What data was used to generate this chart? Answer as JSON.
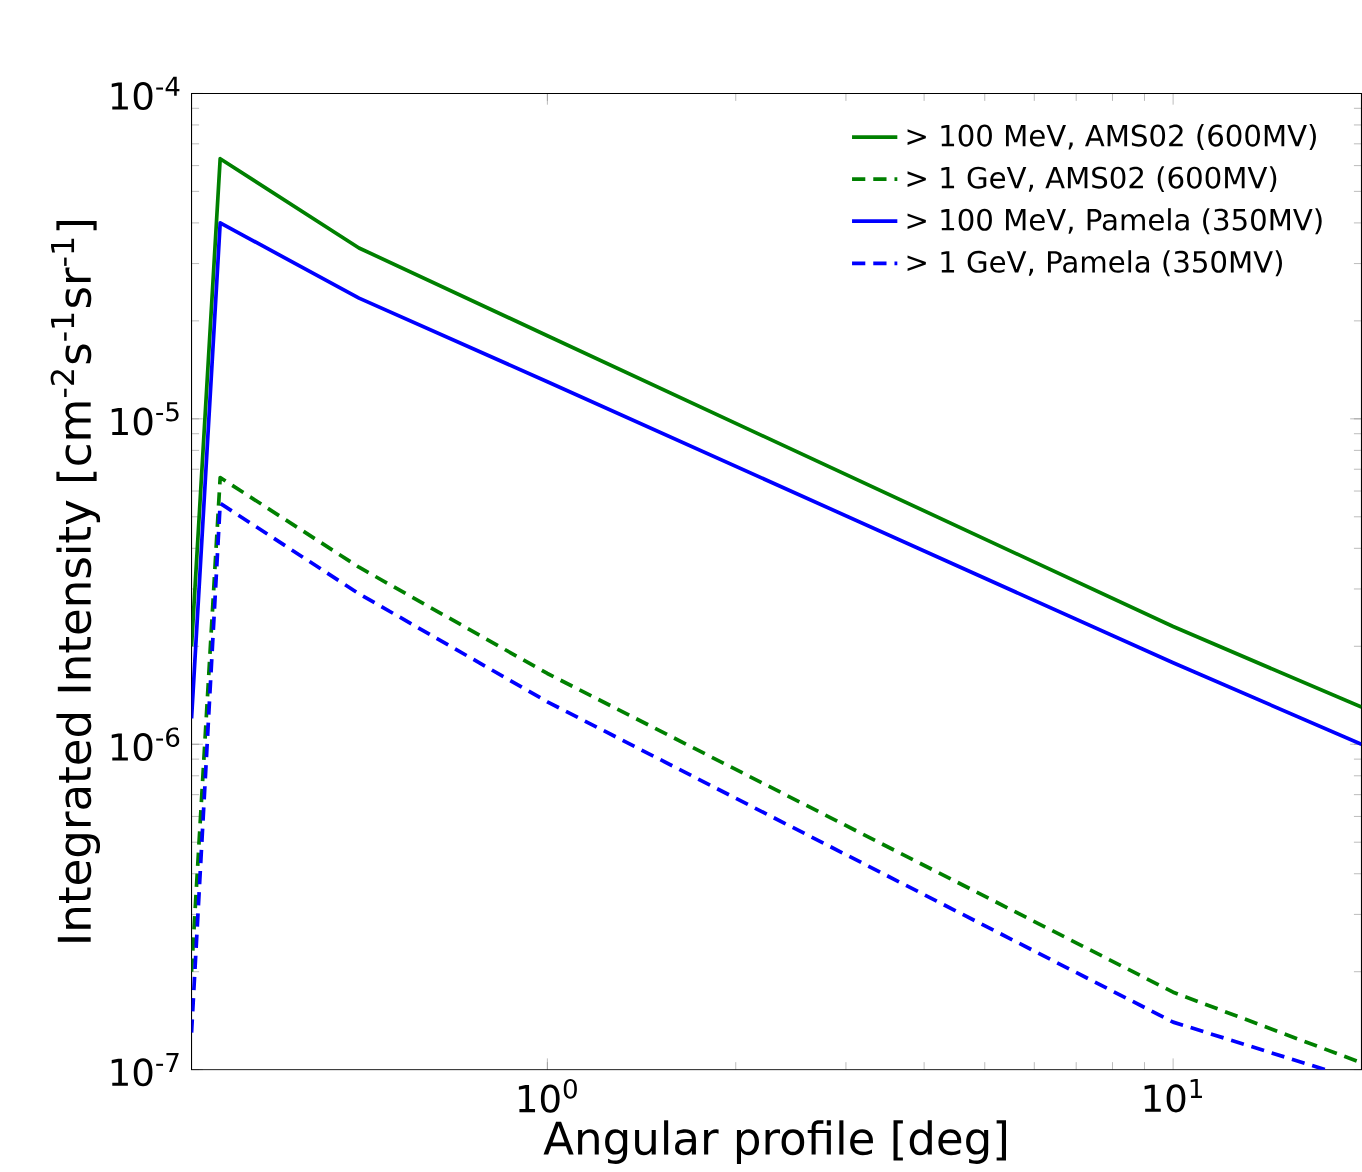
{
  "chart_data": {
    "type": "line",
    "xlabel": "Angular profile [deg]",
    "ylabel": "Integrated Intensity [cm$^{-2}$s$^{-1}$sr$^{-1}$]",
    "log": "xy",
    "xlim": [
      0.27,
      20
    ],
    "ylim": [
      1e-07,
      0.0001
    ],
    "xticks": [
      {
        "value": 1,
        "label": "10$^{0}$"
      },
      {
        "value": 10,
        "label": "10$^{1}$"
      }
    ],
    "yticks": [
      {
        "value": 1e-07,
        "label": "10$^{-7}$"
      },
      {
        "value": 1e-06,
        "label": "10$^{-6}$"
      },
      {
        "value": 1e-05,
        "label": "10$^{-5}$"
      },
      {
        "value": 0.0001,
        "label": "10$^{-4}$"
      }
    ],
    "grid": false,
    "legend": "top right",
    "marker": "none",
    "series": [
      {
        "name": "> 100 MeV, AMS02 (600MV)",
        "color": "#008000",
        "line_style": "solid",
        "x": [
          0.27,
          0.3,
          0.5,
          1,
          10,
          20
        ],
        "values": [
          2e-06,
          6.3e-05,
          3.35e-05,
          1.8e-05,
          2.3e-06,
          1.3e-06
        ]
      },
      {
        "name": "> 1 GeV, AMS02 (600MV)",
        "color": "#008000",
        "line_style": "dashed",
        "x": [
          0.27,
          0.3,
          0.5,
          1,
          10,
          20
        ],
        "values": [
          2e-07,
          6.6e-06,
          3.5e-06,
          1.65e-06,
          1.73e-07,
          1.05e-07
        ]
      },
      {
        "name": "> 100 MeV, Pamela (350MV)",
        "color": "#0000ff",
        "line_style": "solid",
        "x": [
          0.27,
          0.3,
          0.5,
          1,
          10,
          20
        ],
        "values": [
          1.2e-06,
          4e-05,
          2.35e-05,
          1.3e-05,
          1.78e-06,
          1e-06
        ]
      },
      {
        "name": "> 1 GeV,  Pamela (350MV)",
        "color": "#0000ff",
        "line_style": "dashed",
        "x": [
          0.27,
          0.3,
          0.5,
          1,
          10,
          17.5
        ],
        "values": [
          1.3e-07,
          5.5e-06,
          2.9e-06,
          1.35e-06,
          1.4e-07,
          1e-07
        ]
      }
    ]
  }
}
